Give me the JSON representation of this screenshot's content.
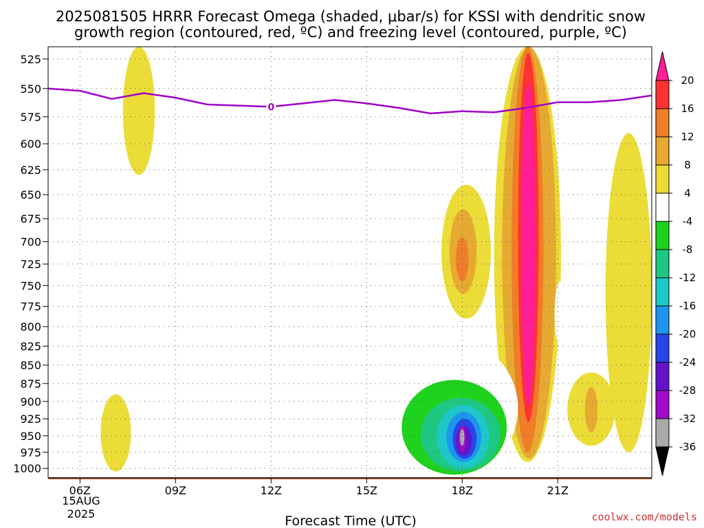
{
  "header": {
    "title_line1": "2025081505 HRRR Forecast Omega (shaded, μbar/s) for KSSI with dendritic snow",
    "title_line2": "growth region (contoured, red, ºC) and freezing level (contoured, purple, ºC)"
  },
  "footer": {
    "xlabel": "Forecast Time (UTC)",
    "credit": "coolwx.com/models",
    "date_day": "15AUG",
    "date_year": "2025"
  },
  "chart_data": {
    "type": "heatmap",
    "title": "2025081505 HRRR Forecast Omega (shaded, μbar/s) for KSSI with dendritic snow growth region (contoured, red, ºC) and freezing level (contoured, purple, ºC)",
    "xlabel": "Forecast Time (UTC)",
    "ylabel": "",
    "x_range_hours": [
      5,
      23.95
    ],
    "x_ticks": [
      {
        "hour": 6,
        "label": "06Z"
      },
      {
        "hour": 9,
        "label": "09Z"
      },
      {
        "hour": 12,
        "label": "12Z"
      },
      {
        "hour": 15,
        "label": "15Z"
      },
      {
        "hour": 18,
        "label": "18Z"
      },
      {
        "hour": 21,
        "label": "21Z"
      }
    ],
    "y_scale": "log-pressure",
    "y_range_mb": [
      1015,
      515
    ],
    "y_ticks": [
      525,
      550,
      575,
      600,
      625,
      650,
      675,
      700,
      725,
      750,
      775,
      800,
      825,
      850,
      875,
      900,
      925,
      950,
      975,
      1000
    ],
    "grid": true,
    "colorbar": {
      "labels": [
        "20",
        "16",
        "12",
        "8",
        "4",
        "-4",
        "-8",
        "-12",
        "-16",
        "-20",
        "-24",
        "-28",
        "-32",
        "-36"
      ],
      "bins": [
        {
          "range": [
            20,
            99
          ],
          "color": "#ff1e96"
        },
        {
          "range": [
            16,
            20
          ],
          "color": "#ff3232"
        },
        {
          "range": [
            12,
            16
          ],
          "color": "#f07d28"
        },
        {
          "range": [
            8,
            12
          ],
          "color": "#e6aa32"
        },
        {
          "range": [
            4,
            8
          ],
          "color": "#ebdc37"
        },
        {
          "range": [
            -4,
            4
          ],
          "color": "#ffffff"
        },
        {
          "range": [
            -8,
            -4
          ],
          "color": "#1ed21e"
        },
        {
          "range": [
            -12,
            -8
          ],
          "color": "#1ec882"
        },
        {
          "range": [
            -16,
            -12
          ],
          "color": "#1ec8c8"
        },
        {
          "range": [
            -20,
            -16
          ],
          "color": "#1e96f0"
        },
        {
          "range": [
            -24,
            -20
          ],
          "color": "#2846e6"
        },
        {
          "range": [
            -28,
            -24
          ],
          "color": "#6414c8"
        },
        {
          "range": [
            -32,
            -28
          ],
          "color": "#a00ac8"
        },
        {
          "range": [
            -36,
            -32
          ],
          "color": "#aaaaaa"
        },
        {
          "range": [
            -99,
            -36
          ],
          "color": "#000000"
        }
      ]
    },
    "omega_regions": [
      {
        "value_bin": "4 to 8",
        "level": 4,
        "hours": [
          22.5,
          23.95
        ],
        "pressure_mb": [
          590,
          975
        ]
      },
      {
        "value_bin": "4 to 8",
        "level": 4,
        "hours": [
          21.3,
          22.8
        ],
        "pressure_mb": [
          860,
          965
        ]
      },
      {
        "value_bin": "8 to 12",
        "level": 8,
        "hours": [
          21.85,
          22.25
        ],
        "pressure_mb": [
          880,
          945
        ]
      },
      {
        "value_bin": "4 to 8",
        "level": 4,
        "hours": [
          19.0,
          21.1
        ],
        "pressure_mb": [
          515,
          990
        ]
      },
      {
        "value_bin": "8 to 12",
        "level": 8,
        "hours": [
          19.25,
          20.95
        ],
        "pressure_mb": [
          515,
          985
        ]
      },
      {
        "value_bin": "12 to 16",
        "level": 12,
        "hours": [
          19.55,
          20.55
        ],
        "pressure_mb": [
          515,
          975
        ]
      },
      {
        "value_bin": "16 to 20",
        "level": 16,
        "hours": [
          19.75,
          20.4
        ],
        "pressure_mb": [
          520,
          930
        ]
      },
      {
        "value_bin": ">20",
        "level": 20,
        "hours": [
          19.85,
          20.3
        ],
        "pressure_mb": [
          545,
          905
        ]
      },
      {
        "value_bin": "4 to 8",
        "level": 4,
        "hours": [
          17.35,
          18.9
        ],
        "pressure_mb": [
          640,
          790
        ]
      },
      {
        "value_bin": "8 to 12",
        "level": 8,
        "hours": [
          17.6,
          18.45
        ],
        "pressure_mb": [
          665,
          760
        ]
      },
      {
        "value_bin": "12 to 16",
        "level": 12,
        "hours": [
          17.8,
          18.2
        ],
        "pressure_mb": [
          695,
          745
        ]
      },
      {
        "value_bin": "4 to 8",
        "level": 4,
        "hours": [
          7.35,
          8.35
        ],
        "pressure_mb": [
          515,
          630
        ]
      },
      {
        "value_bin": "4 to 8",
        "level": 4,
        "hours": [
          6.65,
          7.6
        ],
        "pressure_mb": [
          890,
          1005
        ]
      },
      {
        "value_bin": "-8 to -4",
        "level": -4,
        "hours": [
          15.45,
          19.75
        ],
        "pressure_mb": [
          815,
          1015
        ]
      },
      {
        "value_bin": "-12 to -8",
        "level": -8,
        "hours": [
          16.1,
          19.4
        ],
        "pressure_mb": [
          870,
          1010
        ]
      },
      {
        "value_bin": "-16 to -12",
        "level": -12,
        "hours": [
          16.7,
          19.2
        ],
        "pressure_mb": [
          895,
          1005
        ]
      },
      {
        "value_bin": "-20 to -16",
        "level": -16,
        "hours": [
          17.2,
          18.85
        ],
        "pressure_mb": [
          905,
          1000
        ]
      },
      {
        "value_bin": "-24 to -20",
        "level": -20,
        "hours": [
          17.5,
          18.6
        ],
        "pressure_mb": [
          915,
          990
        ]
      },
      {
        "value_bin": "-28 to -24",
        "level": -24,
        "hours": [
          17.7,
          18.45
        ],
        "pressure_mb": [
          925,
          985
        ]
      },
      {
        "value_bin": "-32 to -28",
        "level": -28,
        "hours": [
          17.8,
          18.3
        ],
        "pressure_mb": [
          935,
          980
        ]
      },
      {
        "value_bin": "-36 to -32",
        "level": -32,
        "hours": [
          17.88,
          18.12
        ],
        "pressure_mb": [
          935,
          975
        ]
      },
      {
        "value_bin": "< -36",
        "level": -36,
        "hours": [
          17.93,
          18.07
        ],
        "pressure_mb": [
          940,
          965
        ]
      },
      {
        "value_bin": "-8 to -4",
        "level": -4,
        "hours": [
          20.9,
          21.25
        ],
        "pressure_mb": [
          745,
          825
        ]
      },
      {
        "value_bin": "-8 to -4",
        "level": -4,
        "hours": [
          5.95,
          6.05
        ],
        "pressure_mb": [
          515,
          522
        ]
      }
    ],
    "freezing_level": {
      "label": "0",
      "color": "#a000c8",
      "points": [
        {
          "hour": 5.0,
          "mb": 550
        },
        {
          "hour": 6.0,
          "mb": 552
        },
        {
          "hour": 7.0,
          "mb": 559
        },
        {
          "hour": 8.0,
          "mb": 554
        },
        {
          "hour": 9.0,
          "mb": 558
        },
        {
          "hour": 10.0,
          "mb": 564
        },
        {
          "hour": 11.0,
          "mb": 565
        },
        {
          "hour": 12.0,
          "mb": 566
        },
        {
          "hour": 13.0,
          "mb": 563
        },
        {
          "hour": 14.0,
          "mb": 560
        },
        {
          "hour": 15.0,
          "mb": 563
        },
        {
          "hour": 16.0,
          "mb": 567
        },
        {
          "hour": 17.0,
          "mb": 572
        },
        {
          "hour": 18.0,
          "mb": 570
        },
        {
          "hour": 19.0,
          "mb": 571
        },
        {
          "hour": 20.0,
          "mb": 567
        },
        {
          "hour": 21.0,
          "mb": 562
        },
        {
          "hour": 22.0,
          "mb": 562
        },
        {
          "hour": 23.0,
          "mb": 560
        },
        {
          "hour": 23.95,
          "mb": 556
        }
      ]
    },
    "surface_pressure_mb": 1014
  }
}
